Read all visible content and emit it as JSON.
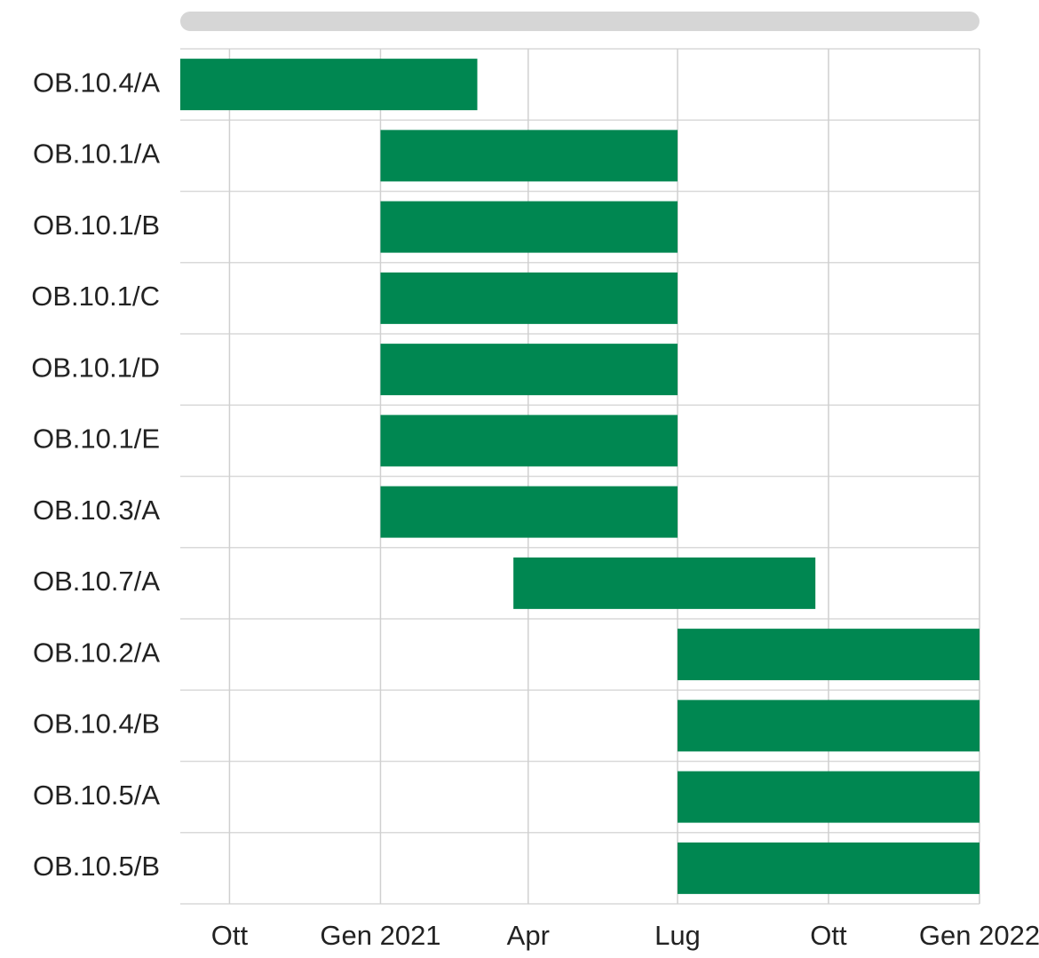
{
  "chart_data": {
    "type": "gantt",
    "categories": [
      "OB.10.4/A",
      "OB.10.1/A",
      "OB.10.1/B",
      "OB.10.1/C",
      "OB.10.1/D",
      "OB.10.1/E",
      "OB.10.3/A",
      "OB.10.7/A",
      "OB.10.2/A",
      "OB.10.4/B",
      "OB.10.5/A",
      "OB.10.5/B"
    ],
    "start": [
      "2020-09-01",
      "2021-01-01",
      "2021-01-01",
      "2021-01-01",
      "2021-01-01",
      "2021-01-01",
      "2021-01-01",
      "2021-03-23",
      "2021-07-01",
      "2021-07-01",
      "2021-07-01",
      "2021-07-01"
    ],
    "end": [
      "2021-03-01",
      "2021-07-01",
      "2021-07-01",
      "2021-07-01",
      "2021-07-01",
      "2021-07-01",
      "2021-07-01",
      "2021-09-23",
      "2022-01-01",
      "2022-01-01",
      "2022-01-01",
      "2022-01-01"
    ],
    "color": "#008751",
    "xlim": [
      "2020-09-01",
      "2022-01-01"
    ],
    "xticks": [
      {
        "value": "2020-10-01",
        "label": "Ott"
      },
      {
        "value": "2021-01-01",
        "label": "Gen 2021"
      },
      {
        "value": "2021-04-01",
        "label": "Apr"
      },
      {
        "value": "2021-07-01",
        "label": "Lug"
      },
      {
        "value": "2021-10-01",
        "label": "Ott"
      },
      {
        "value": "2022-01-01",
        "label": "Gen 2022"
      }
    ],
    "grid": true
  }
}
